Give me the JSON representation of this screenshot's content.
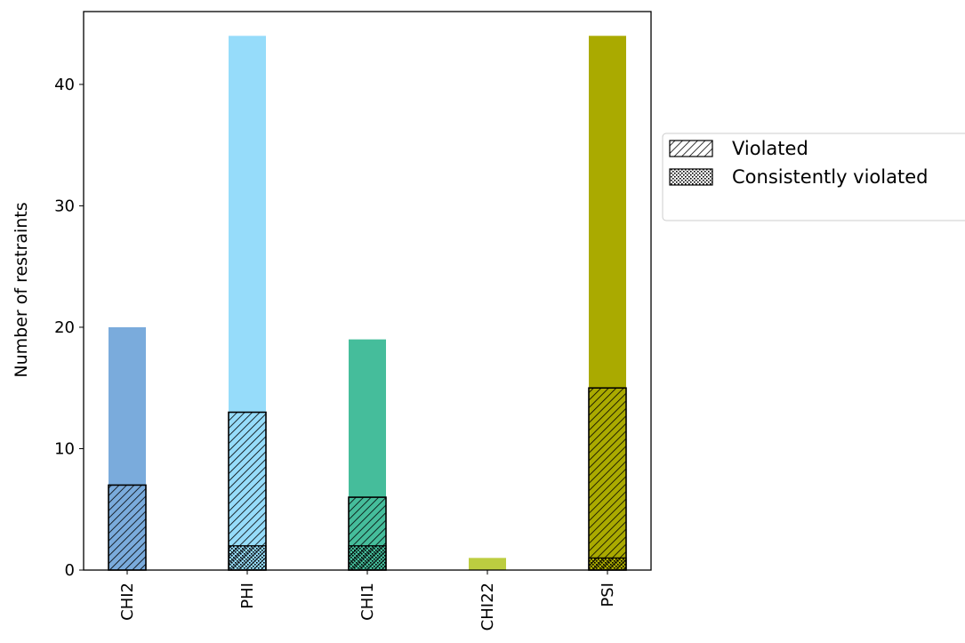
{
  "chart_data": {
    "type": "bar",
    "categories": [
      "CHI2",
      "PHI",
      "CHI1",
      "CHI22",
      "PSI"
    ],
    "ylabel": "Number of restraints",
    "xlabel": "",
    "ylim": [
      0,
      46
    ],
    "yticks": [
      0,
      10,
      20,
      30,
      40
    ],
    "colors": [
      "#7aabdc",
      "#96dcfa",
      "#45bd9b",
      "#bccd40",
      "#aaaa00"
    ],
    "series": [
      {
        "name": "",
        "values": [
          20,
          44,
          19,
          1,
          44
        ]
      },
      {
        "name": "Violated",
        "values": [
          7,
          13,
          6,
          0,
          15
        ]
      },
      {
        "name": "Consistently violated",
        "values": [
          0,
          2,
          2,
          0,
          1
        ]
      }
    ],
    "legend": {
      "position": "right",
      "entries": [
        "Violated",
        "Consistently violated"
      ]
    },
    "grid": false
  }
}
